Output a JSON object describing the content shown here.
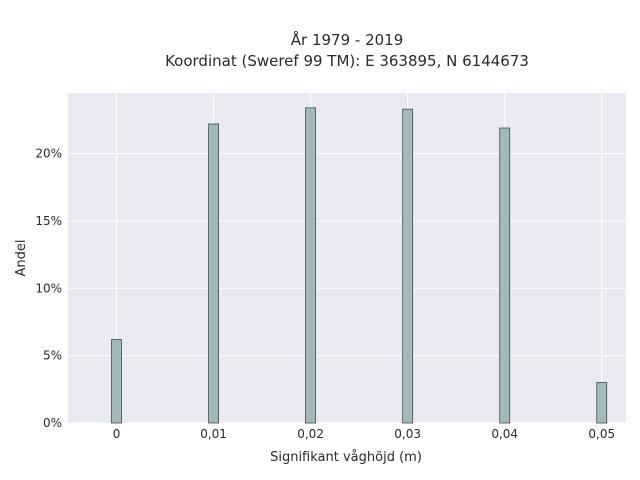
{
  "chart_data": {
    "type": "bar",
    "title_lines": [
      "År 1979 - 2019",
      "Koordinat (Sweref 99 TM): E 363895, N 6144673"
    ],
    "xlabel": "Signifikant våghöjd (m)",
    "ylabel": "Andel",
    "x": [
      0,
      0.01,
      0.02,
      0.03,
      0.04,
      0.05
    ],
    "x_tick_labels": [
      "0",
      "0,01",
      "0,02",
      "0,03",
      "0,04",
      "0,05"
    ],
    "values": [
      6.2,
      22.2,
      23.4,
      23.3,
      21.9,
      3.0
    ],
    "y_ticks": [
      0,
      5,
      10,
      15,
      20
    ],
    "y_tick_labels": [
      "0%",
      "5%",
      "10%",
      "15%",
      "20%"
    ],
    "xlim": [
      -0.005,
      0.0525
    ],
    "ylim": [
      0,
      24.5
    ],
    "grid": true,
    "colors": {
      "plot_background": "#e9e9f1",
      "grid": "#ffffff",
      "bar_fill": "#a1b9ba",
      "bar_stroke": "#3f4f4f"
    }
  }
}
